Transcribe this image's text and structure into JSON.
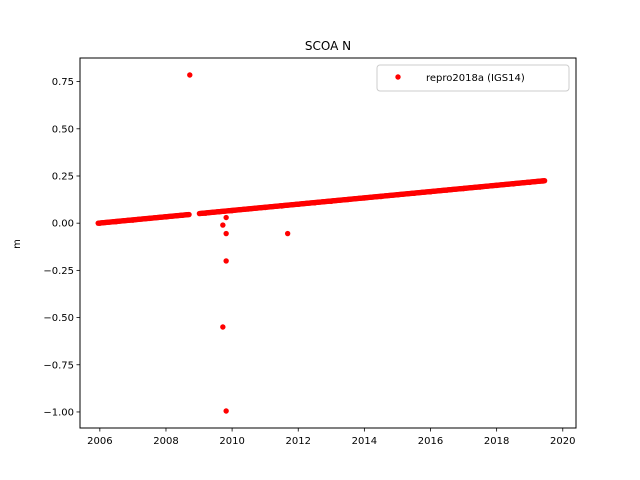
{
  "chart_data": {
    "type": "scatter",
    "title": "SCOA N",
    "xlabel": "",
    "ylabel": "m",
    "xlim": [
      2005.4,
      2020.4
    ],
    "ylim": [
      -1.085,
      0.875
    ],
    "xticks": [
      2006,
      2008,
      2010,
      2012,
      2014,
      2016,
      2018,
      2020
    ],
    "xtick_labels": [
      "2006",
      "2008",
      "2010",
      "2012",
      "2014",
      "2016",
      "2018",
      "2020"
    ],
    "yticks": [
      0.75,
      0.5,
      0.25,
      0.0,
      -0.25,
      -0.5,
      -0.75,
      -1.0
    ],
    "ytick_labels": [
      "0.75",
      "0.50",
      "0.25",
      "0.00",
      "−0.25",
      "−0.50",
      "−0.75",
      "−1.00"
    ],
    "grid": false,
    "legend": {
      "position": "top-right",
      "entries": [
        "repro2018a (IGS14)"
      ]
    },
    "series": [
      {
        "name": "repro2018a (IGS14)",
        "color": "#ff0000",
        "marker": "circle",
        "trend": {
          "x_start": 2005.95,
          "x_end": 2019.45,
          "y_start": 0.0,
          "y_end": 0.225
        },
        "gaps": [
          [
            2008.72,
            2009.0
          ]
        ],
        "x": [
          2006.0,
          2006.5,
          2007.0,
          2007.5,
          2008.0,
          2008.5,
          2009.2,
          2009.6,
          2010.0,
          2010.5,
          2011.0,
          2011.5,
          2012.0,
          2012.5,
          2013.0,
          2013.5,
          2014.0,
          2014.5,
          2015.0,
          2015.5,
          2016.0,
          2016.5,
          2017.0,
          2017.5,
          2018.0,
          2018.5,
          2019.0,
          2019.4
        ],
        "y": [
          0.0,
          0.008,
          0.016,
          0.025,
          0.033,
          0.042,
          0.053,
          0.06,
          0.066,
          0.075,
          0.083,
          0.091,
          0.1,
          0.108,
          0.116,
          0.125,
          0.133,
          0.141,
          0.15,
          0.158,
          0.166,
          0.175,
          0.183,
          0.191,
          0.2,
          0.208,
          0.216,
          0.223
        ],
        "outliers": [
          {
            "x": 2008.72,
            "y": 0.785
          },
          {
            "x": 2009.72,
            "y": -0.01
          },
          {
            "x": 2009.82,
            "y": 0.03
          },
          {
            "x": 2009.82,
            "y": -0.055
          },
          {
            "x": 2009.82,
            "y": -0.2
          },
          {
            "x": 2009.72,
            "y": -0.55
          },
          {
            "x": 2009.82,
            "y": -0.995
          },
          {
            "x": 2011.68,
            "y": -0.055
          }
        ]
      }
    ]
  }
}
